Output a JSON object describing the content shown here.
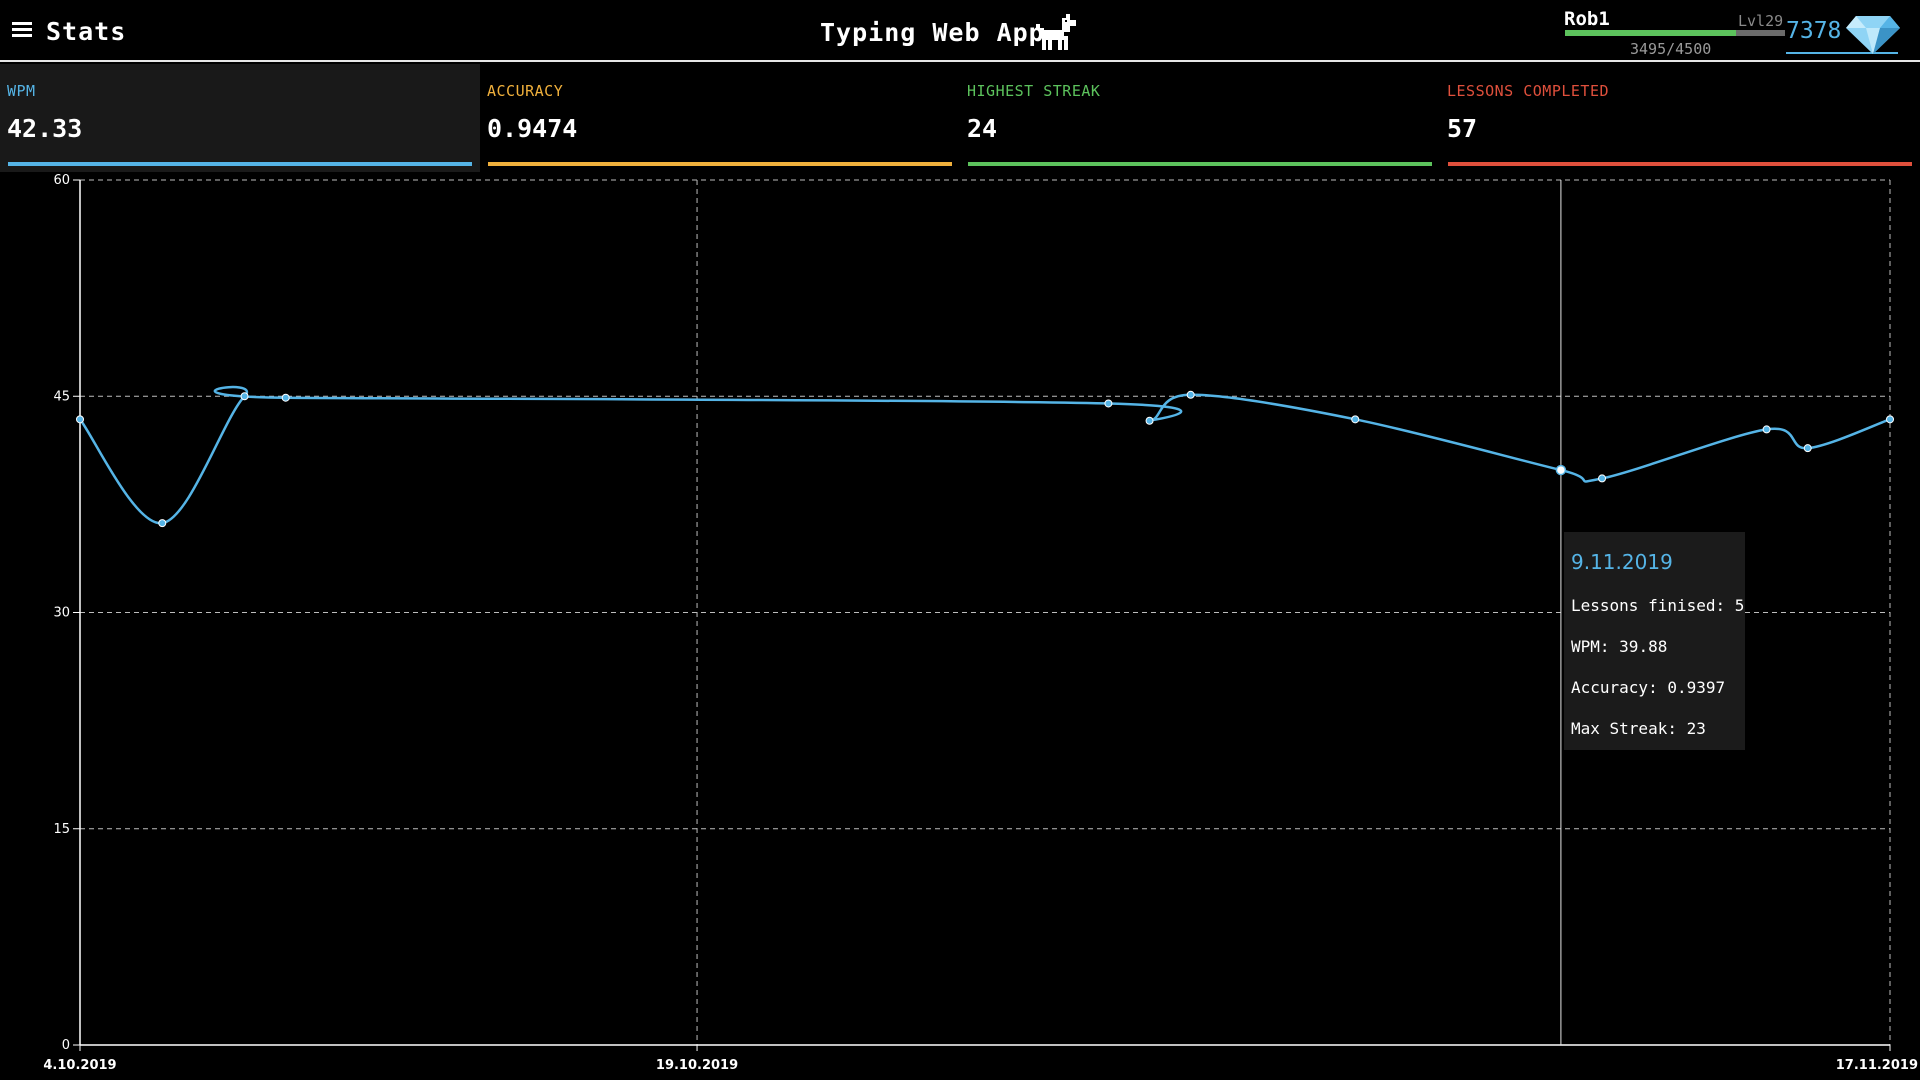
{
  "header": {
    "page_title": "Stats",
    "app_title": "Typing Web App",
    "user": {
      "name": "Rob1",
      "level": "Lvl29",
      "xp": "3495/4500",
      "xp_progress": 0.7767,
      "gems": "7378"
    }
  },
  "cards": [
    {
      "label": "WPM",
      "value": "42.33",
      "color": "#55b4e6"
    },
    {
      "label": "ACCURACY",
      "value": "0.9474",
      "color": "#f0b03c"
    },
    {
      "label": "HIGHEST STREAK",
      "value": "24",
      "color": "#5cc25c"
    },
    {
      "label": "LESSONS COMPLETED",
      "value": "57",
      "color": "#e0503c"
    }
  ],
  "tooltip": {
    "date": "9.11.2019",
    "lessons_label": "Lessons finised:",
    "lessons_value": "5",
    "wpm_label": "WPM:",
    "wpm_value": "39.88",
    "accuracy_label": "Accuracy:",
    "accuracy_value": "0.9397",
    "streak_label": "Max Streak:",
    "streak_value": "23"
  },
  "chart_data": {
    "type": "line",
    "series": [
      {
        "color": "#55b4e6",
        "x": [
          "4.10.2019",
          "6.10.2019",
          "8.10.2019",
          "9.10.2019",
          "29.10.2019",
          "30.10.2019",
          "31.10.2019",
          "4.11.2019",
          "9.11.2019",
          "10.11.2019",
          "14.11.2019",
          "15.11.2019",
          "17.11.2019"
        ],
        "values": [
          43.4,
          36.2,
          45.0,
          44.9,
          44.5,
          43.3,
          45.1,
          43.4,
          39.88,
          39.3,
          42.7,
          41.4,
          43.4
        ]
      }
    ],
    "xlim": [
      "4.10.2019",
      "17.11.2019"
    ],
    "x_ticks": [
      "4.10.2019",
      "19.10.2019",
      "17.11.2019"
    ],
    "ylim": [
      0,
      60
    ],
    "y_ticks": [
      0,
      15,
      30,
      45,
      60
    ],
    "grid": true,
    "highlight": "9.11.2019"
  }
}
